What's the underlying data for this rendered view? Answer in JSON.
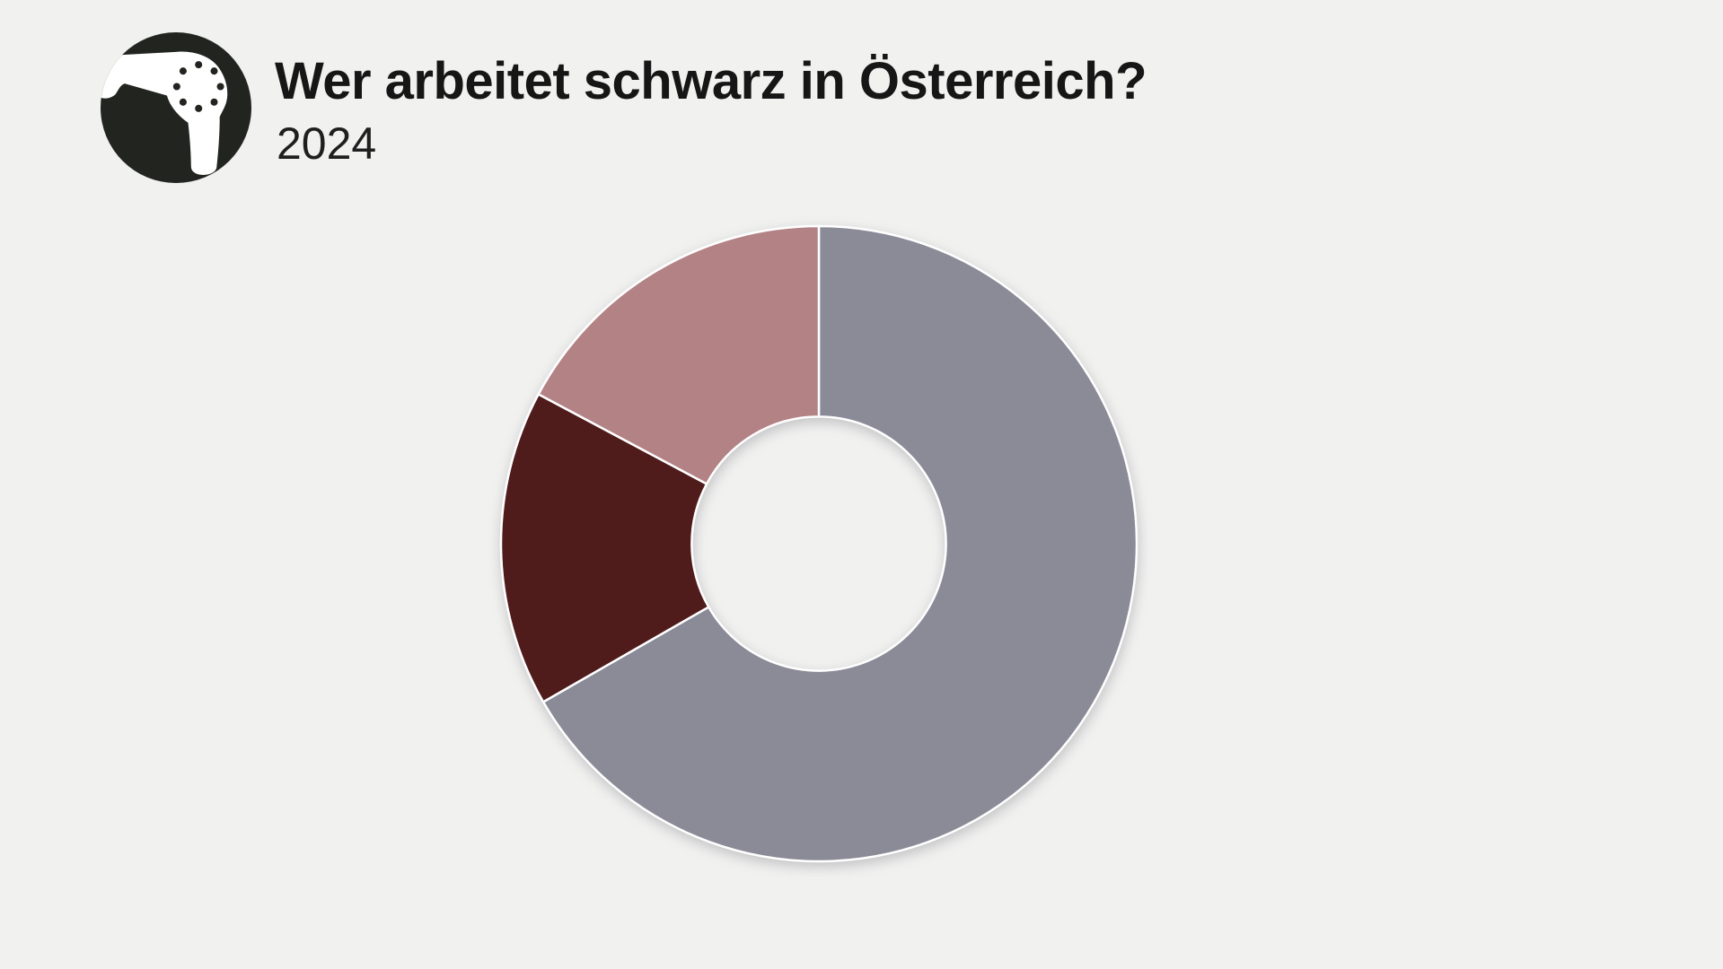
{
  "page": {
    "background_color": "#f1f1f0"
  },
  "header": {
    "title": "Wer arbeitet schwarz in Österreich?",
    "subtitle": "2024",
    "logo": {
      "icon": "hairdryer-logo",
      "bg_color": "#22251f",
      "fg_color": "#ffffff"
    }
  },
  "chart_data": {
    "type": "pie",
    "title": "Wer arbeitet schwarz in Österreich?",
    "subtitle": "2024",
    "donut": true,
    "inner_radius_ratio": 0.4,
    "start_angle_deg": 0,
    "direction": "clockwise",
    "legend": "none",
    "data_labels": "none",
    "separator_color": "#ffffff",
    "segments": [
      {
        "value": 66.7,
        "color": "#8b8a97"
      },
      {
        "value": 16.1,
        "color": "#4f1b1b"
      },
      {
        "value": 17.2,
        "color": "#b38285"
      }
    ]
  }
}
